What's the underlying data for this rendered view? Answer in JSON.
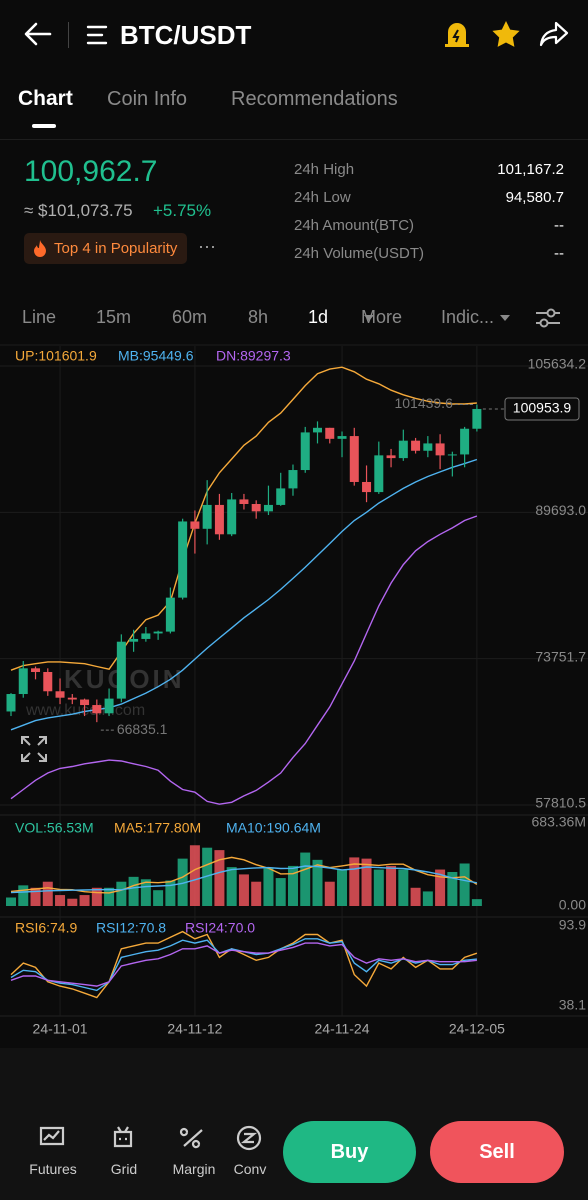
{
  "ui": {
    "header": {
      "pair": "BTC/USDT"
    },
    "tabs": [
      "Chart",
      "Coin Info",
      "Recommendations"
    ],
    "price": {
      "last": "100,962.7",
      "usd": "≈ $101,073.75",
      "change": "+5.75%",
      "badge": "Top 4 in Popularity"
    },
    "stats": [
      {
        "label": "24h High",
        "value": "101,167.2"
      },
      {
        "label": "24h Low",
        "value": "94,580.7"
      },
      {
        "label": "24h Amount(BTC)",
        "value": "--"
      },
      {
        "label": "24h Volume(USDT)",
        "value": "--"
      }
    ],
    "intervals": [
      "Line",
      "15m",
      "60m",
      "8h",
      "1d",
      "More",
      "Indic..."
    ],
    "watermark": {
      "logo": "KUCOIN",
      "url": "www.kucoin.com"
    },
    "nav": [
      "Futures",
      "Grid",
      "Margin",
      "Conv"
    ],
    "buttons": {
      "buy": "Buy",
      "sell": "Sell"
    }
  },
  "chart_data": [
    {
      "type": "candlestick",
      "categories": [
        null,
        null,
        null,
        null,
        "24-11-01",
        null,
        null,
        null,
        null,
        null,
        null,
        null,
        null,
        null,
        null,
        "24-11-12",
        null,
        null,
        null,
        null,
        null,
        null,
        null,
        null,
        null,
        null,
        null,
        "24-11-24",
        null,
        null,
        null,
        null,
        null,
        null,
        null,
        null,
        null,
        null,
        "24-12-05"
      ],
      "open": [
        68000,
        69900,
        72700,
        72300,
        70200,
        69500,
        69300,
        68700,
        67800,
        69400,
        75600,
        75900,
        76500,
        76700,
        80400,
        88700,
        87900,
        90500,
        87300,
        91100,
        90600,
        89800,
        90500,
        92300,
        94300,
        98400,
        98900,
        97700,
        98000,
        93000,
        91900,
        95900,
        95600,
        97500,
        96400,
        97200,
        95900,
        96000,
        98800
      ],
      "high": [
        70000,
        73500,
        72900,
        72700,
        71600,
        69900,
        69400,
        69300,
        70500,
        76400,
        76900,
        77200,
        76800,
        81500,
        89000,
        89900,
        93200,
        91700,
        91800,
        91700,
        91000,
        92600,
        94000,
        94900,
        99000,
        99600,
        98900,
        98500,
        98900,
        94800,
        97400,
        96600,
        98700,
        97800,
        98000,
        98200,
        96300,
        99000,
        101439.6
      ],
      "low": [
        67500,
        69500,
        71500,
        69700,
        68800,
        68800,
        67500,
        66835.1,
        67500,
        69000,
        74500,
        75600,
        75800,
        76500,
        80200,
        85200,
        86200,
        86700,
        87100,
        90000,
        89000,
        89400,
        90400,
        91500,
        94000,
        97200,
        97200,
        95700,
        92600,
        90800,
        91700,
        94600,
        95300,
        96100,
        95700,
        94400,
        93600,
        94600,
        98500
      ],
      "close": [
        69900,
        72700,
        72300,
        70200,
        69500,
        69300,
        68700,
        67800,
        69400,
        75600,
        75900,
        76500,
        76700,
        80400,
        88700,
        87900,
        90500,
        87300,
        91100,
        90600,
        89800,
        90500,
        92300,
        94300,
        98400,
        98900,
        97700,
        98000,
        93000,
        91900,
        95900,
        95600,
        97500,
        96400,
        97200,
        95900,
        96000,
        98800,
        100953.9
      ],
      "up_color": "#1fae83",
      "down_color": "#e9545a",
      "series": [
        {
          "name": "UP:101601.9",
          "color": "#f5a93a",
          "values": [
            72500,
            73000,
            73200,
            73400,
            73400,
            73300,
            73200,
            72900,
            72600,
            74500,
            76500,
            78000,
            78500,
            80000,
            84500,
            88500,
            92000,
            94000,
            95500,
            97000,
            98000,
            99500,
            100500,
            102000,
            103500,
            104800,
            105300,
            105500,
            105000,
            104200,
            103700,
            103000,
            102500,
            102100,
            101800,
            101600,
            101500,
            101500,
            101601.9
          ]
        },
        {
          "name": "MB:95449.6",
          "color": "#4fb3f0",
          "values": [
            66000,
            66500,
            67000,
            67300,
            67500,
            67700,
            68000,
            68200,
            68400,
            68800,
            69400,
            70000,
            70700,
            71500,
            72500,
            73700,
            74900,
            76000,
            77100,
            78200,
            79200,
            80200,
            81300,
            82500,
            83700,
            85000,
            86300,
            87600,
            88800,
            89700,
            90700,
            91500,
            92300,
            93000,
            93600,
            94100,
            94600,
            95000,
            95449.6
          ]
        },
        {
          "name": "DN:89297.3",
          "color": "#b366f0",
          "values": [
            58500,
            59500,
            60500,
            61300,
            61800,
            62000,
            62300,
            62500,
            62700,
            62600,
            62300,
            62000,
            61600,
            60400,
            59500,
            59200,
            58200,
            57900,
            58100,
            58800,
            59400,
            60300,
            61300,
            63000,
            64500,
            66500,
            68500,
            71000,
            73500,
            76500,
            79500,
            82000,
            84000,
            85500,
            86500,
            87300,
            88000,
            88800,
            89297.3
          ]
        }
      ],
      "ylim": [
        57810.5,
        105634.2
      ],
      "yticks": [
        105634.2,
        {
          "value": 89693.0,
          "label": "89693.0"
        },
        73751.7,
        57810.5
      ],
      "high_marker": 101439.6,
      "low_marker": 66835.1,
      "last_price": 100953.9,
      "grid": true
    },
    {
      "type": "bar",
      "legend": "VOL:56.53M",
      "legend_color": "#2ec4a0",
      "values": [
        70,
        170,
        150,
        200,
        90,
        60,
        90,
        150,
        150,
        200,
        240,
        220,
        130,
        210,
        390,
        500,
        480,
        460,
        320,
        260,
        200,
        310,
        230,
        330,
        440,
        380,
        200,
        300,
        400,
        390,
        300,
        330,
        300,
        150,
        120,
        300,
        280,
        350,
        56.53
      ],
      "series": [
        {
          "name": "MA5:177.80M",
          "color": "#f5a93a",
          "values": [
            120,
            130,
            140,
            150,
            136,
            134,
            118,
            110,
            108,
            130,
            168,
            196,
            192,
            200,
            238,
            300,
            340,
            380,
            400,
            380,
            340,
            310,
            264,
            266,
            302,
            338,
            316,
            330,
            346,
            342,
            334,
            344,
            344,
            294,
            258,
            240,
            232,
            240,
            177.8
          ]
        },
        {
          "name": "MA10:190.64M",
          "color": "#4fb3f0",
          "values": [
            110,
            115,
            120,
            125,
            128,
            130,
            132,
            134,
            136,
            133,
            150,
            160,
            165,
            170,
            187,
            216,
            246,
            277,
            300,
            307,
            314,
            316,
            309,
            310,
            329,
            324,
            313,
            297,
            305,
            321,
            316,
            311,
            309,
            296,
            280,
            260,
            230,
            210,
            190.64
          ]
        }
      ],
      "ylim": [
        0,
        683.36
      ],
      "yticks": [
        {
          "value": 683.36,
          "label": "683.36M"
        },
        {
          "value": 0,
          "label": "0.00"
        }
      ]
    },
    {
      "type": "line",
      "series": [
        {
          "name": "RSI6:74.9",
          "color": "#f5a93a",
          "values": [
            60,
            68,
            65,
            55,
            52,
            50,
            47,
            44,
            55,
            78,
            80,
            82,
            82,
            86,
            90,
            85,
            88,
            72,
            78,
            74,
            70,
            72,
            78,
            82,
            88,
            88,
            82,
            84,
            60,
            52,
            68,
            64,
            72,
            65,
            70,
            64,
            64,
            72,
            74.9
          ]
        },
        {
          "name": "RSI12:70.8",
          "color": "#4fb3f0",
          "values": [
            58,
            63,
            62,
            56,
            54,
            53,
            51,
            49,
            55,
            72,
            74,
            76,
            77,
            80,
            84,
            82,
            84,
            75,
            78,
            76,
            74,
            75,
            78,
            81,
            85,
            85,
            82,
            83,
            68,
            62,
            70,
            68,
            71,
            68,
            70,
            67,
            67,
            70,
            70.8
          ]
        },
        {
          "name": "RSI24:70.0",
          "color": "#b366f0",
          "values": [
            56,
            59,
            59,
            56,
            55,
            54,
            53,
            52,
            55,
            66,
            68,
            70,
            71,
            74,
            78,
            78,
            80,
            75,
            77,
            76,
            75,
            75,
            77,
            79,
            82,
            82,
            80,
            81,
            72,
            68,
            71,
            70,
            71,
            69,
            70,
            69,
            69,
            69,
            70.0
          ]
        }
      ],
      "ylim": [
        38.1,
        93.9
      ],
      "yticks": [
        93.9,
        38.1
      ]
    }
  ]
}
